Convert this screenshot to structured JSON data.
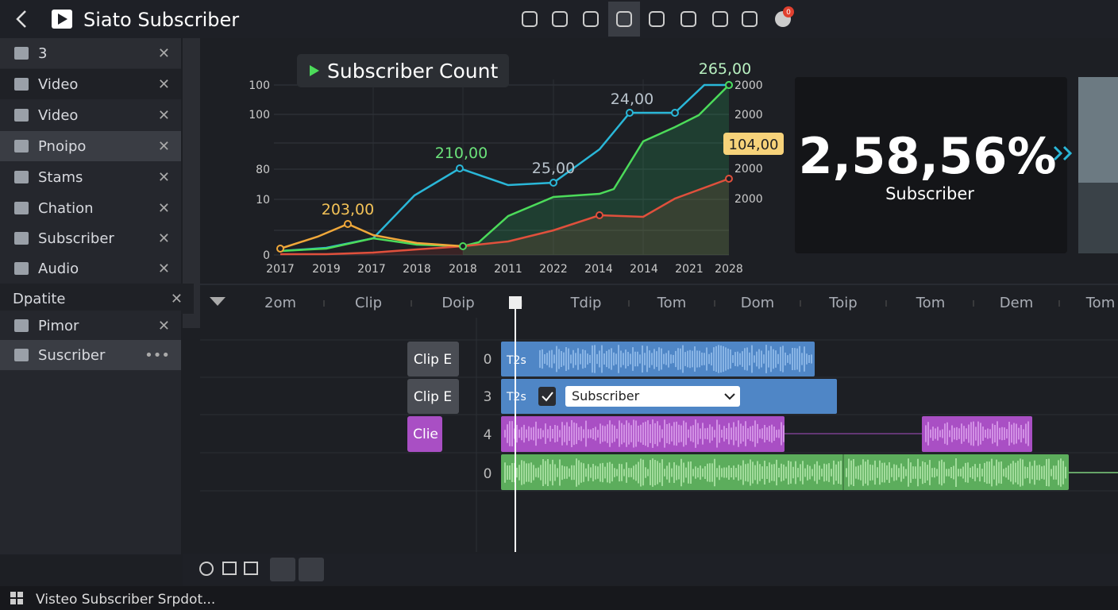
{
  "header": {
    "title": "Siato Subscriber",
    "badge": "0"
  },
  "sidebar": {
    "items": [
      "3",
      "Video",
      "Video",
      "Pnoipo",
      "Stams",
      "Chation",
      "Subscriber",
      "Audio",
      "Dpatite",
      "Pimor",
      "Suscriber"
    ]
  },
  "chart": {
    "title": "Subscriber Count",
    "left_ticks": [
      "100",
      "100",
      "80",
      "10",
      "0"
    ],
    "right_ticks": [
      "2000",
      "2000",
      "2000",
      "2000"
    ],
    "x_labels": [
      "2017",
      "2019",
      "2017",
      "2018",
      "2018",
      "2011",
      "2022",
      "2014",
      "2014",
      "2021",
      "2028"
    ],
    "annotations": [
      "265,00",
      "24,00",
      "210,00",
      "203,00",
      "25,00",
      "104,00"
    ]
  },
  "stat": {
    "value": "2,58,56%",
    "label": "Subscriber"
  },
  "timeline": {
    "ruler": [
      "2om",
      "Clip",
      "Doip",
      "Tdip",
      "Tom",
      "Dom",
      "Toip",
      "Tom",
      "Dem",
      "Tom"
    ],
    "track_labels": [
      "Clip E",
      "Clip E",
      "Clie"
    ],
    "track_numbers": [
      "0",
      "3",
      "4",
      "0"
    ],
    "clip_texts": [
      "T2s",
      "T2s"
    ],
    "dropdown": "Subscriber"
  },
  "status": "Visteo Subscriber Srpdot..."
}
